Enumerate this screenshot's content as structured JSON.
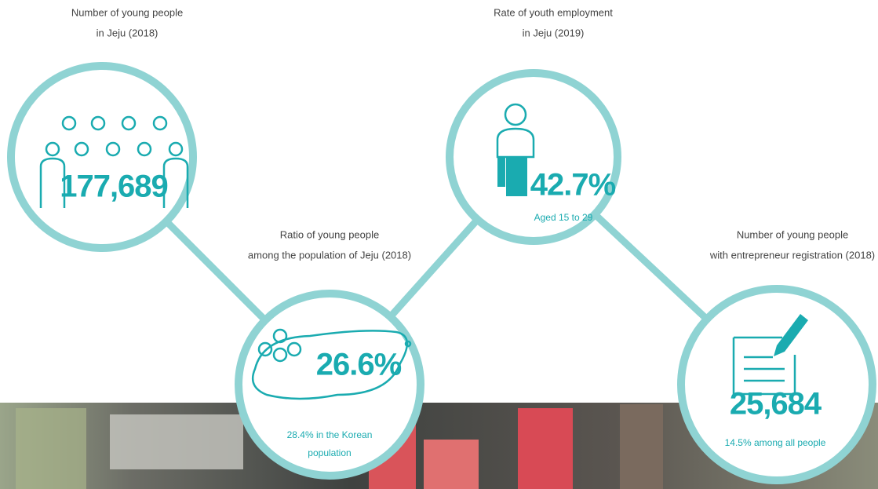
{
  "items": [
    {
      "label_lines": [
        "Number of young people",
        "in Jeju (2018)"
      ],
      "value": "177,689"
    },
    {
      "label_lines": [
        "Rate of youth employment",
        "in Jeju (2019)"
      ],
      "value": "42.7%",
      "note_lines": [
        "Aged 15 to 29"
      ]
    },
    {
      "label_lines": [
        "Ratio of young people",
        "among the population of Jeju (2018)"
      ],
      "value": "26.6%",
      "note_lines": [
        "28.4% in the Korean",
        "population"
      ]
    },
    {
      "label_lines": [
        "Number of young people",
        "with entrepreneur registration (2018)"
      ],
      "value": "25,684",
      "note_lines": [
        "14.5% among all people"
      ]
    }
  ]
}
